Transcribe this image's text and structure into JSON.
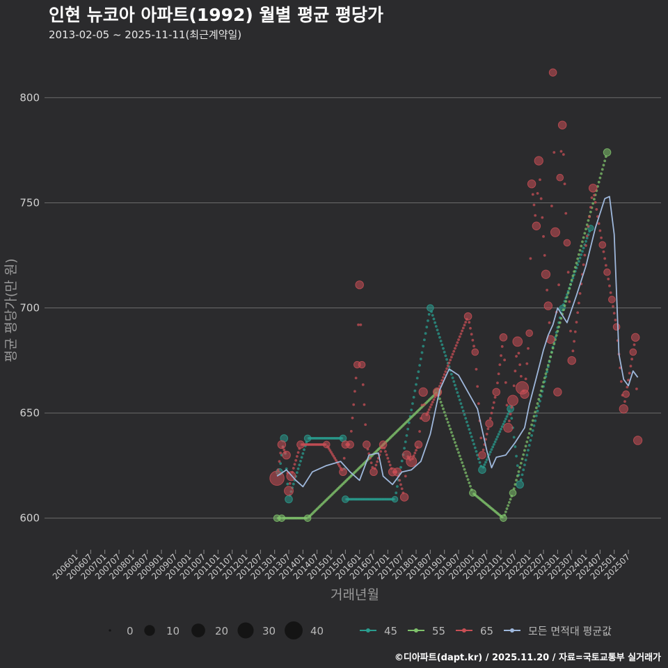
{
  "title": "인현 뉴코아 아파트(1992) 월별 평균 평당가",
  "subtitle": "2013-02-05 ~ 2025-11-11(최근계약일)",
  "footer": "©디아파트(dapt.kr) / 2025.11.20 / 자료=국토교통부 실거래가",
  "colors": {
    "background": "#2b2b2d",
    "grid": "#6b6b6b",
    "s45": "#2a9d8f",
    "s55": "#7fc26b",
    "s65": "#c84f55",
    "avg": "#9fb8dc"
  },
  "chart_data": {
    "type": "scatter",
    "title": "인현 뉴코아 아파트(1992) 월별 평균 평당가",
    "xlabel": "거래년월",
    "ylabel": "평균 평당가(만 원)",
    "ylim": [
      585,
      820
    ],
    "yticks": [
      600,
      650,
      700,
      750,
      800
    ],
    "x_start": "2006-01",
    "x_end": "2025-12",
    "xticks": [
      "200601",
      "200607",
      "200701",
      "200707",
      "200801",
      "200807",
      "200901",
      "200907",
      "201001",
      "201007",
      "201101",
      "201107",
      "201201",
      "201207",
      "201301",
      "201307",
      "201401",
      "201407",
      "201501",
      "201507",
      "201601",
      "201607",
      "201701",
      "201707",
      "201801",
      "201807",
      "201901",
      "201907",
      "202001",
      "202007",
      "202101",
      "202107",
      "202201",
      "202207",
      "202301",
      "202307",
      "202401",
      "202407",
      "202501",
      "202507"
    ],
    "size_legend": {
      "title": "",
      "values": [
        0,
        10,
        20,
        30,
        40
      ]
    },
    "series": [
      {
        "name": "45",
        "color": "#2a9d8f",
        "style": "dotted-interpolated",
        "points": [
          {
            "x": "2013-03",
            "y": 622,
            "n": 3
          },
          {
            "x": "2013-05",
            "y": 638,
            "n": 4
          },
          {
            "x": "2013-07",
            "y": 609,
            "n": 4
          },
          {
            "x": "2014-03",
            "y": 638,
            "n": 3
          },
          {
            "x": "2015-06",
            "y": 638,
            "n": 3
          },
          {
            "x": "2015-07",
            "y": 609,
            "n": 3
          },
          {
            "x": "2017-04",
            "y": 609,
            "n": 2
          },
          {
            "x": "2018-07",
            "y": 700,
            "n": 3
          },
          {
            "x": "2020-05",
            "y": 623,
            "n": 4
          },
          {
            "x": "2021-05",
            "y": 652,
            "n": 3
          },
          {
            "x": "2021-09",
            "y": 616,
            "n": 4
          },
          {
            "x": "2023-03",
            "y": 700,
            "n": 2
          },
          {
            "x": "2024-03",
            "y": 738,
            "n": 2
          }
        ]
      },
      {
        "name": "55",
        "color": "#7fc26b",
        "style": "dotted-interpolated",
        "points": [
          {
            "x": "2013-02",
            "y": 600,
            "n": 3
          },
          {
            "x": "2013-04",
            "y": 600,
            "n": 3
          },
          {
            "x": "2014-03",
            "y": 600,
            "n": 3
          },
          {
            "x": "2018-10",
            "y": 660,
            "n": 3
          },
          {
            "x": "2020-01",
            "y": 612,
            "n": 3
          },
          {
            "x": "2021-02",
            "y": 600,
            "n": 3
          },
          {
            "x": "2021-06",
            "y": 612,
            "n": 3
          },
          {
            "x": "2024-10",
            "y": 774,
            "n": 4
          }
        ]
      },
      {
        "name": "65",
        "color": "#c84f55",
        "style": "dotted-interpolated",
        "points": [
          {
            "x": "2013-02",
            "y": 619,
            "n": 22
          },
          {
            "x": "2013-04",
            "y": 635,
            "n": 5
          },
          {
            "x": "2013-06",
            "y": 630,
            "n": 5
          },
          {
            "x": "2013-07",
            "y": 613,
            "n": 7
          },
          {
            "x": "2013-08",
            "y": 620,
            "n": 7
          },
          {
            "x": "2013-12",
            "y": 635,
            "n": 4
          },
          {
            "x": "2014-11",
            "y": 635,
            "n": 3
          },
          {
            "x": "2015-06",
            "y": 622,
            "n": 4
          },
          {
            "x": "2015-07",
            "y": 635,
            "n": 4
          },
          {
            "x": "2015-09",
            "y": 635,
            "n": 4
          },
          {
            "x": "2016-01",
            "y": 711,
            "n": 5
          },
          {
            "x": "2015-12",
            "y": 673,
            "n": 3
          },
          {
            "x": "2016-02",
            "y": 673,
            "n": 3
          },
          {
            "x": "2016-04",
            "y": 635,
            "n": 4
          },
          {
            "x": "2016-07",
            "y": 622,
            "n": 4
          },
          {
            "x": "2016-11",
            "y": 635,
            "n": 4
          },
          {
            "x": "2017-03",
            "y": 622,
            "n": 5
          },
          {
            "x": "2017-05",
            "y": 622,
            "n": 5
          },
          {
            "x": "2017-08",
            "y": 610,
            "n": 5
          },
          {
            "x": "2017-09",
            "y": 630,
            "n": 6
          },
          {
            "x": "2017-11",
            "y": 627,
            "n": 10
          },
          {
            "x": "2018-02",
            "y": 635,
            "n": 4
          },
          {
            "x": "2018-04",
            "y": 660,
            "n": 6
          },
          {
            "x": "2018-05",
            "y": 648,
            "n": 6
          },
          {
            "x": "2018-10",
            "y": 660,
            "n": 6
          },
          {
            "x": "2019-11",
            "y": 696,
            "n": 4
          },
          {
            "x": "2020-02",
            "y": 679,
            "n": 3
          },
          {
            "x": "2020-05",
            "y": 630,
            "n": 4
          },
          {
            "x": "2020-08",
            "y": 645,
            "n": 4
          },
          {
            "x": "2020-11",
            "y": 660,
            "n": 4
          },
          {
            "x": "2021-02",
            "y": 686,
            "n": 4
          },
          {
            "x": "2021-04",
            "y": 643,
            "n": 7
          },
          {
            "x": "2021-06",
            "y": 656,
            "n": 10
          },
          {
            "x": "2021-08",
            "y": 684,
            "n": 8
          },
          {
            "x": "2021-10",
            "y": 662,
            "n": 16
          },
          {
            "x": "2021-11",
            "y": 659,
            "n": 6
          },
          {
            "x": "2022-01",
            "y": 688,
            "n": 3
          },
          {
            "x": "2022-02",
            "y": 759,
            "n": 5
          },
          {
            "x": "2022-04",
            "y": 739,
            "n": 5
          },
          {
            "x": "2022-05",
            "y": 770,
            "n": 6
          },
          {
            "x": "2022-08",
            "y": 716,
            "n": 6
          },
          {
            "x": "2022-11",
            "y": 812,
            "n": 4
          },
          {
            "x": "2022-10",
            "y": 685,
            "n": 5
          },
          {
            "x": "2022-09",
            "y": 701,
            "n": 5
          },
          {
            "x": "2022-12",
            "y": 736,
            "n": 7
          },
          {
            "x": "2023-01",
            "y": 660,
            "n": 5
          },
          {
            "x": "2023-03",
            "y": 787,
            "n": 5
          },
          {
            "x": "2023-05",
            "y": 731,
            "n": 3
          },
          {
            "x": "2023-02",
            "y": 762,
            "n": 3
          },
          {
            "x": "2023-07",
            "y": 675,
            "n": 5
          },
          {
            "x": "2024-04",
            "y": 757,
            "n": 5
          },
          {
            "x": "2024-08",
            "y": 730,
            "n": 3
          },
          {
            "x": "2024-10",
            "y": 717,
            "n": 3
          },
          {
            "x": "2024-12",
            "y": 704,
            "n": 3
          },
          {
            "x": "2025-02",
            "y": 691,
            "n": 3
          },
          {
            "x": "2025-05",
            "y": 652,
            "n": 6
          },
          {
            "x": "2025-06",
            "y": 659,
            "n": 3
          },
          {
            "x": "2025-09",
            "y": 679,
            "n": 3
          },
          {
            "x": "2025-10",
            "y": 686,
            "n": 5
          },
          {
            "x": "2025-11",
            "y": 637,
            "n": 6
          }
        ]
      },
      {
        "name": "모든 면적대 평균값",
        "color": "#9fb8dc",
        "style": "line",
        "points": [
          {
            "x": "2013-02",
            "y": 620
          },
          {
            "x": "2013-06",
            "y": 623
          },
          {
            "x": "2013-10",
            "y": 618
          },
          {
            "x": "2014-01",
            "y": 615
          },
          {
            "x": "2014-05",
            "y": 622
          },
          {
            "x": "2014-11",
            "y": 625
          },
          {
            "x": "2015-05",
            "y": 627
          },
          {
            "x": "2015-09",
            "y": 622
          },
          {
            "x": "2016-01",
            "y": 618
          },
          {
            "x": "2016-05",
            "y": 630
          },
          {
            "x": "2016-09",
            "y": 631
          },
          {
            "x": "2016-11",
            "y": 620
          },
          {
            "x": "2017-03",
            "y": 616
          },
          {
            "x": "2017-07",
            "y": 622
          },
          {
            "x": "2017-11",
            "y": 623
          },
          {
            "x": "2018-03",
            "y": 627
          },
          {
            "x": "2018-07",
            "y": 640
          },
          {
            "x": "2018-11",
            "y": 661
          },
          {
            "x": "2019-03",
            "y": 671
          },
          {
            "x": "2019-07",
            "y": 668
          },
          {
            "x": "2019-11",
            "y": 660
          },
          {
            "x": "2020-03",
            "y": 652
          },
          {
            "x": "2020-07",
            "y": 632
          },
          {
            "x": "2020-09",
            "y": 624
          },
          {
            "x": "2020-11",
            "y": 629
          },
          {
            "x": "2021-03",
            "y": 630
          },
          {
            "x": "2021-07",
            "y": 636
          },
          {
            "x": "2021-11",
            "y": 643
          },
          {
            "x": "2022-01",
            "y": 654
          },
          {
            "x": "2022-04",
            "y": 667
          },
          {
            "x": "2022-07",
            "y": 680
          },
          {
            "x": "2022-09",
            "y": 687
          },
          {
            "x": "2022-11",
            "y": 692
          },
          {
            "x": "2023-01",
            "y": 700
          },
          {
            "x": "2023-05",
            "y": 693
          },
          {
            "x": "2023-09",
            "y": 706
          },
          {
            "x": "2024-01",
            "y": 720
          },
          {
            "x": "2024-05",
            "y": 738
          },
          {
            "x": "2024-09",
            "y": 752
          },
          {
            "x": "2024-11",
            "y": 753
          },
          {
            "x": "2025-01",
            "y": 735
          },
          {
            "x": "2025-03",
            "y": 678
          },
          {
            "x": "2025-05",
            "y": 666
          },
          {
            "x": "2025-07",
            "y": 663
          },
          {
            "x": "2025-09",
            "y": 670
          },
          {
            "x": "2025-11",
            "y": 667
          }
        ]
      }
    ]
  }
}
